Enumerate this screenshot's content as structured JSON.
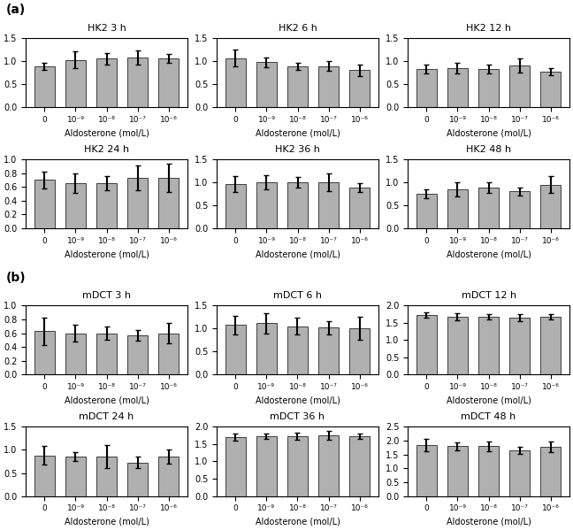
{
  "chart_data": [
    {
      "type": "bar",
      "title": "HK2 3 h",
      "xlabel": "Aldosterone (mol/L)",
      "categories": [
        "0",
        "10⁻⁹",
        "10⁻⁸",
        "10⁻⁷",
        "10⁻⁶"
      ],
      "values": [
        0.88,
        1.02,
        1.05,
        1.08,
        1.05
      ],
      "errors": [
        0.08,
        0.18,
        0.12,
        0.15,
        0.1
      ],
      "ylim": [
        0.0,
        1.5
      ],
      "yticks": [
        0.0,
        0.5,
        1.0,
        1.5
      ],
      "color": "#b0b0b0"
    },
    {
      "type": "bar",
      "title": "HK2 6 h",
      "xlabel": "Aldosterone (mol/L)",
      "categories": [
        "0",
        "10⁻⁹",
        "10⁻⁸",
        "10⁻⁷",
        "10⁻⁶"
      ],
      "values": [
        1.06,
        0.97,
        0.88,
        0.89,
        0.8
      ],
      "errors": [
        0.18,
        0.1,
        0.08,
        0.1,
        0.12
      ],
      "ylim": [
        0.0,
        1.5
      ],
      "yticks": [
        0.0,
        0.5,
        1.0,
        1.5
      ],
      "color": "#b0b0b0"
    },
    {
      "type": "bar",
      "title": "HK2 12 h",
      "xlabel": "Aldosterone (mol/L)",
      "categories": [
        "0",
        "10⁻⁹",
        "10⁻⁸",
        "10⁻⁷",
        "10⁻⁶"
      ],
      "values": [
        0.82,
        0.84,
        0.82,
        0.9,
        0.77
      ],
      "errors": [
        0.1,
        0.12,
        0.1,
        0.15,
        0.08
      ],
      "ylim": [
        0.0,
        1.5
      ],
      "yticks": [
        0.0,
        0.5,
        1.0,
        1.5
      ],
      "color": "#b0b0b0"
    },
    {
      "type": "bar",
      "title": "HK2 24 h",
      "xlabel": "Aldosterone (mol/L)",
      "categories": [
        "0",
        "10⁻⁹",
        "10⁻⁸",
        "10⁻⁷",
        "10⁻⁶"
      ],
      "values": [
        0.7,
        0.65,
        0.65,
        0.73,
        0.73
      ],
      "errors": [
        0.12,
        0.14,
        0.1,
        0.18,
        0.2
      ],
      "ylim": [
        0.0,
        1.0
      ],
      "yticks": [
        0.0,
        0.2,
        0.4,
        0.6,
        0.8,
        1.0
      ],
      "color": "#b0b0b0"
    },
    {
      "type": "bar",
      "title": "HK2 36 h",
      "xlabel": "Aldosterone (mol/L)",
      "categories": [
        "0",
        "10⁻⁹",
        "10⁻⁸",
        "10⁻⁷",
        "10⁻⁶"
      ],
      "values": [
        0.96,
        1.0,
        1.0,
        1.0,
        0.88
      ],
      "errors": [
        0.18,
        0.15,
        0.12,
        0.2,
        0.1
      ],
      "ylim": [
        0.0,
        1.5
      ],
      "yticks": [
        0.0,
        0.5,
        1.0,
        1.5
      ],
      "color": "#b0b0b0"
    },
    {
      "type": "bar",
      "title": "HK2 48 h",
      "xlabel": "Aldosterone (mol/L)",
      "categories": [
        "0",
        "10⁻⁹",
        "10⁻⁸",
        "10⁻⁷",
        "10⁻⁶"
      ],
      "values": [
        0.75,
        0.85,
        0.88,
        0.8,
        0.95
      ],
      "errors": [
        0.1,
        0.15,
        0.12,
        0.08,
        0.18
      ],
      "ylim": [
        0.0,
        1.5
      ],
      "yticks": [
        0.0,
        0.5,
        1.0,
        1.5
      ],
      "color": "#b0b0b0"
    },
    {
      "type": "bar",
      "title": "mDCT 3 h",
      "xlabel": "Aldosterone (mol/L)",
      "categories": [
        "0",
        "10⁻⁹",
        "10⁻⁸",
        "10⁻⁷",
        "10⁻⁶"
      ],
      "values": [
        0.63,
        0.6,
        0.6,
        0.57,
        0.6
      ],
      "errors": [
        0.2,
        0.12,
        0.1,
        0.08,
        0.15
      ],
      "ylim": [
        0.0,
        1.0
      ],
      "yticks": [
        0.0,
        0.2,
        0.4,
        0.6,
        0.8,
        1.0
      ],
      "color": "#b0b0b0"
    },
    {
      "type": "bar",
      "title": "mDCT 6 h",
      "xlabel": "Aldosterone (mol/L)",
      "categories": [
        "0",
        "10⁻⁹",
        "10⁻⁸",
        "10⁻⁷",
        "10⁻⁶"
      ],
      "values": [
        1.08,
        1.12,
        1.05,
        1.02,
        1.0
      ],
      "errors": [
        0.2,
        0.22,
        0.18,
        0.15,
        0.25
      ],
      "ylim": [
        0.0,
        1.5
      ],
      "yticks": [
        0.0,
        0.5,
        1.0,
        1.5
      ],
      "color": "#b0b0b0"
    },
    {
      "type": "bar",
      "title": "mDCT 12 h",
      "xlabel": "Aldosterone (mol/L)",
      "categories": [
        "0",
        "10⁻⁹",
        "10⁻⁸",
        "10⁻⁷",
        "10⁻⁶"
      ],
      "values": [
        1.72,
        1.68,
        1.68,
        1.65,
        1.68
      ],
      "errors": [
        0.08,
        0.1,
        0.08,
        0.1,
        0.08
      ],
      "ylim": [
        0.0,
        2.0
      ],
      "yticks": [
        0.0,
        0.5,
        1.0,
        1.5,
        2.0
      ],
      "color": "#b0b0b0"
    },
    {
      "type": "bar",
      "title": "mDCT 24 h",
      "xlabel": "Aldosterone (mol/L)",
      "categories": [
        "0",
        "10⁻⁹",
        "10⁻⁸",
        "10⁻⁷",
        "10⁻⁶"
      ],
      "values": [
        0.88,
        0.85,
        0.85,
        0.73,
        0.85
      ],
      "errors": [
        0.2,
        0.1,
        0.25,
        0.12,
        0.15
      ],
      "ylim": [
        0.0,
        1.5
      ],
      "yticks": [
        0.0,
        0.5,
        1.0,
        1.5
      ],
      "color": "#b0b0b0"
    },
    {
      "type": "bar",
      "title": "mDCT 36 h",
      "xlabel": "Aldosterone (mol/L)",
      "categories": [
        "0",
        "10⁻⁹",
        "10⁻⁸",
        "10⁻⁷",
        "10⁻⁶"
      ],
      "values": [
        1.7,
        1.72,
        1.72,
        1.75,
        1.72
      ],
      "errors": [
        0.1,
        0.08,
        0.1,
        0.12,
        0.08
      ],
      "ylim": [
        0.0,
        2.0
      ],
      "yticks": [
        0.0,
        0.5,
        1.0,
        1.5,
        2.0
      ],
      "color": "#b0b0b0"
    },
    {
      "type": "bar",
      "title": "mDCT 48 h",
      "xlabel": "Aldosterone (mol/L)",
      "categories": [
        "0",
        "10⁻⁹",
        "10⁻⁸",
        "10⁻⁷",
        "10⁻⁶"
      ],
      "values": [
        1.85,
        1.8,
        1.8,
        1.65,
        1.78
      ],
      "errors": [
        0.22,
        0.15,
        0.18,
        0.12,
        0.2
      ],
      "ylim": [
        0.0,
        2.5
      ],
      "yticks": [
        0.0,
        0.5,
        1.0,
        1.5,
        2.0,
        2.5
      ],
      "color": "#b0b0b0"
    }
  ],
  "annotations": [
    "(a)",
    "(b)"
  ]
}
